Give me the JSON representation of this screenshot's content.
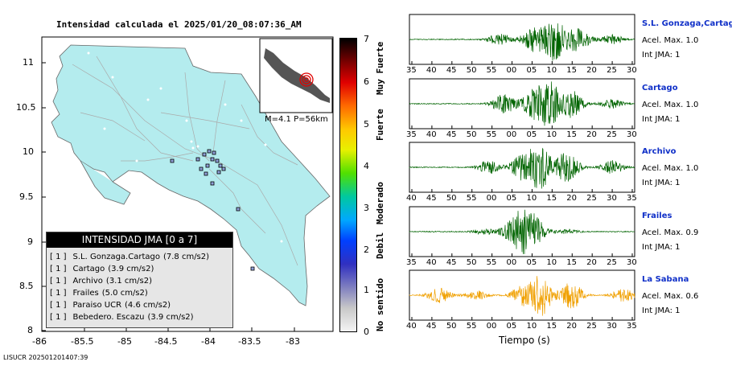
{
  "title": "Intensidad calculada el 2025/01/20_08:07:36_AM",
  "map": {
    "y_ticks": [
      "11",
      "10.5",
      "10",
      "9.5",
      "9",
      "8.5",
      "8"
    ],
    "x_ticks": [
      "-86",
      "-85.5",
      "-85",
      "-84.5",
      "-84",
      "-83.5",
      "-83"
    ],
    "inset_caption": "M=4.1  P=56km"
  },
  "legend": {
    "title": "INTENSIDAD JMA [0 a 7]",
    "rows": [
      {
        "level": "[ 1 ]",
        "name": "S.L. Gonzaga.Cartago",
        "accel": "(7.8 cm/s2)"
      },
      {
        "level": "[ 1 ]",
        "name": "Cartago",
        "accel": "(3.9 cm/s2)"
      },
      {
        "level": "[ 1 ]",
        "name": "Archivo",
        "accel": "(3.1 cm/s2)"
      },
      {
        "level": "[ 1 ]",
        "name": "Frailes",
        "accel": "(5.0 cm/s2)"
      },
      {
        "level": "[ 1 ]",
        "name": "Paraiso UCR",
        "accel": "(4.6 cm/s2)"
      },
      {
        "level": "[ 1 ]",
        "name": "Bebedero. Escazu",
        "accel": "(3.9 cm/s2)"
      }
    ]
  },
  "colorbar": {
    "ticks": [
      "7",
      "6",
      "5",
      "4",
      "3",
      "2",
      "1",
      "0"
    ],
    "labels": [
      "Muy Fuerte",
      "Fuerte",
      "Moderado",
      "Debil",
      "No sentido"
    ],
    "colors": [
      "#000000",
      "#7a0000",
      "#e00000",
      "#ff6a00",
      "#ffc800",
      "#e8f000",
      "#50e000",
      "#00c8a0",
      "#00a8ff",
      "#0040ff",
      "#3030c0",
      "#8080c0",
      "#c8c8c8",
      "#f4f4f4"
    ]
  },
  "stations": [
    {
      "name": "S.L. Gonzaga,Cartago",
      "accel": "Acel. Max. 1.0",
      "int": "Int JMA: 1",
      "color": "#006400",
      "ticks": [
        "35",
        "40",
        "45",
        "50",
        "55",
        "00",
        "05",
        "10",
        "15",
        "20",
        "25",
        "30"
      ]
    },
    {
      "name": "Cartago",
      "accel": "Acel. Max. 1.0",
      "int": "Int JMA: 1",
      "color": "#006400",
      "ticks": [
        "35",
        "40",
        "45",
        "50",
        "55",
        "00",
        "05",
        "10",
        "15",
        "20",
        "25",
        "30"
      ]
    },
    {
      "name": "Archivo",
      "accel": "Acel. Max. 1.0",
      "int": "Int JMA: 1",
      "color": "#006400",
      "ticks": [
        "40",
        "45",
        "50",
        "55",
        "00",
        "05",
        "10",
        "15",
        "20",
        "25",
        "30",
        "35"
      ]
    },
    {
      "name": "Frailes",
      "accel": "Acel. Max. 0.9",
      "int": "Int JMA: 1",
      "color": "#006400",
      "ticks": [
        "35",
        "40",
        "45",
        "50",
        "55",
        "00",
        "05",
        "10",
        "15",
        "20",
        "25",
        "30"
      ]
    },
    {
      "name": "La Sabana",
      "accel": "Acel. Max. 0.6",
      "int": "Int JMA: 1",
      "color": "#f0a000",
      "ticks": [
        "40",
        "45",
        "50",
        "55",
        "00",
        "05",
        "10",
        "15",
        "20",
        "25",
        "30",
        "35"
      ]
    }
  ],
  "xlabel": "Tiempo (s)",
  "footer": "LISUCR 202501201407:39",
  "chart_data": [
    {
      "type": "map",
      "ylim": [
        8,
        11.2
      ],
      "xlim": [
        -86,
        -82.5
      ],
      "epicenter_marker": "red-circles"
    },
    {
      "type": "line",
      "name": "seismograms",
      "series": [
        "S.L. Gonzaga,Cartago",
        "Cartago",
        "Archivo",
        "Frailes",
        "La Sabana"
      ]
    }
  ]
}
